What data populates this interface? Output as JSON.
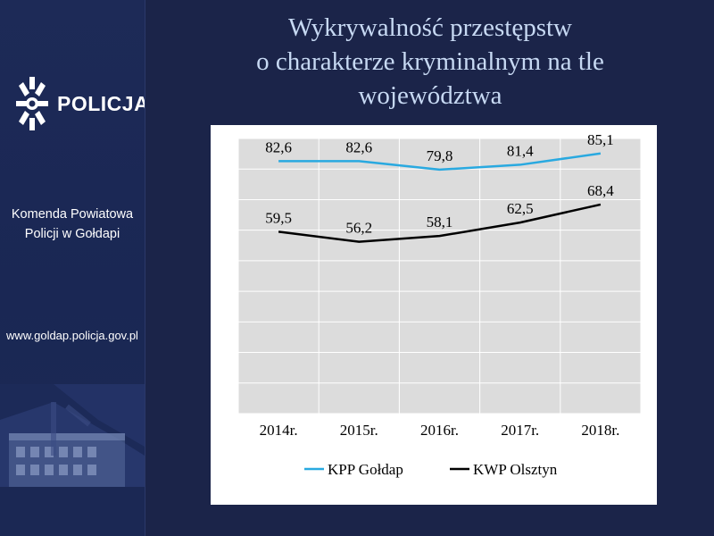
{
  "brand": {
    "logo_text": "POLICJA",
    "unit_line1": "Komenda Powiatowa",
    "unit_line2": "Policji w Gołdapi",
    "website": "www.goldap.policja.gov.pl"
  },
  "title_lines": [
    "Wykrywalność przestępstw",
    "o charakterze kryminalnym na tle",
    "województwa"
  ],
  "colors": {
    "background": "#1b2449",
    "title": "#c7d9f3",
    "series_goldap": "#29a9e0",
    "series_olsztyn": "#000000",
    "plot_area": "#dcdcdc"
  },
  "chart_data": {
    "type": "line",
    "categories": [
      "2014r.",
      "2015r.",
      "2016r.",
      "2017r.",
      "2018r."
    ],
    "series": [
      {
        "name": "KPP Gołdap",
        "values": [
          82.6,
          82.6,
          79.8,
          81.4,
          85.1
        ],
        "labels": [
          "82,6",
          "82,6",
          "79,8",
          "81,4",
          "85,1"
        ],
        "color": "#29a9e0"
      },
      {
        "name": "KWP Olsztyn",
        "values": [
          59.5,
          56.2,
          58.1,
          62.5,
          68.4
        ],
        "labels": [
          "59,5",
          "56,2",
          "58,1",
          "62,5",
          "68,4"
        ],
        "color": "#000000"
      }
    ],
    "ylim": [
      0,
      90
    ],
    "grid": true,
    "legend_position": "bottom",
    "y_tick_labels_shown": false
  }
}
